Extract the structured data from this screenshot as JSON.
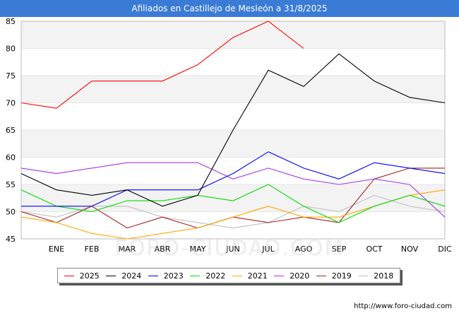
{
  "chart_data": {
    "type": "line",
    "title": "Afiliados en Castillejo de Mesleón a 31/8/2025",
    "xlabel": "",
    "ylabel": "",
    "categories": [
      "",
      "ENE",
      "FEB",
      "MAR",
      "ABR",
      "MAY",
      "JUN",
      "JUL",
      "AGO",
      "SEP",
      "OCT",
      "NOV",
      "DIC"
    ],
    "yticks": [
      45,
      50,
      55,
      60,
      65,
      70,
      75,
      80,
      85
    ],
    "ylim": [
      45,
      85
    ],
    "grid": "horizontal bands",
    "legend_position": "bottom",
    "series": [
      {
        "name": "2025",
        "color": "#ff0000",
        "values": [
          70,
          69,
          74,
          74,
          74,
          77,
          82,
          85,
          80,
          null,
          null,
          null,
          null
        ]
      },
      {
        "name": "2024",
        "color": "#000000",
        "values": [
          57,
          54,
          53,
          54,
          51,
          53,
          65,
          76,
          73,
          79,
          74,
          71,
          70
        ]
      },
      {
        "name": "2023",
        "color": "#0000ff",
        "values": [
          51,
          51,
          51,
          54,
          54,
          54,
          57,
          61,
          58,
          56,
          59,
          58,
          57
        ]
      },
      {
        "name": "2022",
        "color": "#00dd00",
        "values": [
          54,
          51,
          50,
          52,
          52,
          53,
          52,
          55,
          51,
          48,
          51,
          53,
          51
        ]
      },
      {
        "name": "2021",
        "color": "#ffa500",
        "values": [
          49,
          48,
          46,
          45,
          46,
          47,
          49,
          51,
          49,
          49,
          51,
          53,
          54
        ]
      },
      {
        "name": "2020",
        "color": "#aa33ee",
        "values": [
          58,
          57,
          58,
          59,
          59,
          59,
          56,
          58,
          56,
          55,
          56,
          55,
          49
        ]
      },
      {
        "name": "2019",
        "color": "#aa2222",
        "values": [
          50,
          48,
          51,
          47,
          49,
          47,
          49,
          48,
          49,
          48,
          56,
          58,
          58
        ]
      },
      {
        "name": "2018",
        "color": "#c0c0c0",
        "values": [
          50,
          49,
          51,
          51,
          49,
          48,
          47,
          48,
          51,
          50,
          53,
          51,
          50
        ]
      }
    ]
  },
  "footer": {
    "source": "http://www.foro-ciudad.com",
    "watermark": "FORO-CIUDAD.COM"
  }
}
